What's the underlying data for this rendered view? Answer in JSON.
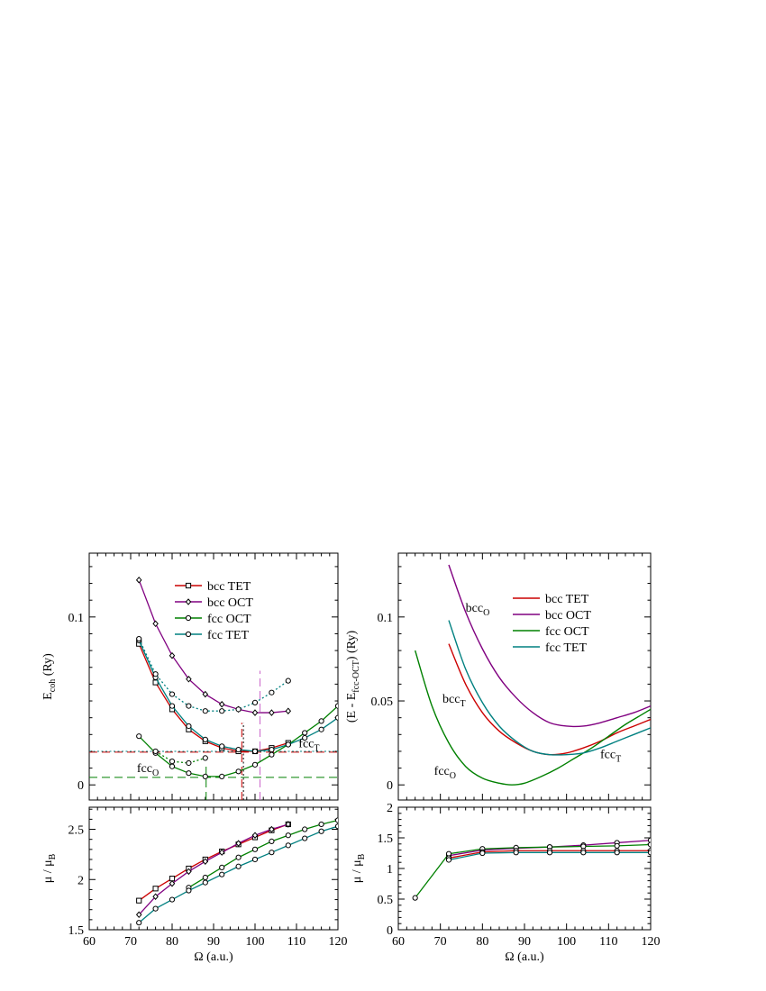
{
  "figure_xlabel_sym": "Ω",
  "figure_xlabel_unit": " (a.u.)",
  "chart_data": [
    {
      "type": "line",
      "panel": "top-left",
      "ylabel_main": "E",
      "ylabel_sub": "coh",
      "ylabel_unit": " (Ry)",
      "xlim": [
        60,
        120
      ],
      "ylim": [
        -0.009,
        0.138
      ],
      "yticks": [
        {
          "v": 0,
          "label": "0"
        },
        {
          "v": 0.1,
          "label": "0.1"
        }
      ],
      "xticks": [
        60,
        70,
        80,
        90,
        100,
        110,
        120
      ],
      "legend_placement": "top-right",
      "series": [
        {
          "name": "bcc TET",
          "color": "#cc0000",
          "marker": "square",
          "style": "solid",
          "points": [
            [
              72,
              0.084
            ],
            [
              76,
              0.061
            ],
            [
              80,
              0.045
            ],
            [
              84,
              0.033
            ],
            [
              88,
              0.026
            ],
            [
              92,
              0.022
            ],
            [
              96,
              0.02
            ],
            [
              100,
              0.02
            ],
            [
              104,
              0.022
            ],
            [
              108,
              0.025
            ]
          ]
        },
        {
          "name": "bcc OCT",
          "color": "#800080",
          "marker": "diamond",
          "style": "solid",
          "points": [
            [
              72,
              0.122
            ],
            [
              76,
              0.096
            ],
            [
              80,
              0.077
            ],
            [
              84,
              0.063
            ],
            [
              88,
              0.054
            ],
            [
              92,
              0.048
            ],
            [
              96,
              0.045
            ],
            [
              100,
              0.043
            ],
            [
              104,
              0.043
            ],
            [
              108,
              0.044
            ]
          ]
        },
        {
          "name": "fcc OCT",
          "color": "#008000",
          "marker": "circle",
          "style": "solid",
          "points": [
            [
              72,
              0.029
            ],
            [
              76,
              0.019
            ],
            [
              80,
              0.011
            ],
            [
              84,
              0.007
            ],
            [
              88,
              0.005
            ],
            [
              92,
              0.005
            ],
            [
              96,
              0.008
            ],
            [
              100,
              0.012
            ],
            [
              104,
              0.018
            ],
            [
              108,
              0.024
            ],
            [
              112,
              0.031
            ],
            [
              116,
              0.038
            ],
            [
              120,
              0.047
            ]
          ]
        },
        {
          "name": "fcc TET",
          "color": "#008080",
          "marker": "circle",
          "style": "solid",
          "points": [
            [
              72,
              0.086
            ],
            [
              76,
              0.064
            ],
            [
              80,
              0.047
            ],
            [
              84,
              0.035
            ],
            [
              88,
              0.027
            ],
            [
              92,
              0.023
            ],
            [
              96,
              0.021
            ],
            [
              100,
              0.02
            ],
            [
              104,
              0.021
            ],
            [
              108,
              0.024
            ],
            [
              112,
              0.028
            ],
            [
              116,
              0.033
            ],
            [
              120,
              0.04
            ]
          ]
        },
        {
          "name": "",
          "color": "#008080",
          "marker": "circle",
          "style": "dotted",
          "points": [
            [
              72,
              0.087
            ],
            [
              76,
              0.066
            ],
            [
              80,
              0.054
            ],
            [
              84,
              0.047
            ],
            [
              88,
              0.044
            ],
            [
              92,
              0.044
            ],
            [
              96,
              0.045
            ],
            [
              100,
              0.049
            ],
            [
              104,
              0.055
            ],
            [
              108,
              0.062
            ]
          ]
        },
        {
          "name": "",
          "color": "#008000",
          "marker": "circle",
          "style": "dotted",
          "points": [
            [
              76,
              0.02
            ],
            [
              80,
              0.014
            ],
            [
              84,
              0.013
            ],
            [
              88,
              0.016
            ]
          ]
        }
      ],
      "hlines": [
        {
          "y": 0.0195,
          "color": "#cc0000",
          "style": "dashed"
        },
        {
          "y": 0.02,
          "color": "#008080",
          "style": "dotted"
        },
        {
          "y": 0.0045,
          "color": "#008000",
          "style": "dashed"
        }
      ],
      "vlines": [
        {
          "x": 96.8,
          "y": 0.037,
          "color": "#cc0000",
          "style": "dashed"
        },
        {
          "x": 97.2,
          "y": 0.037,
          "color": "#000000",
          "style": "dotted"
        },
        {
          "x": 88.2,
          "y": 0.013,
          "color": "#008000",
          "style": "dashed"
        },
        {
          "x": 101.2,
          "y": 0.068,
          "color": "#cc66cc",
          "style": "dashed"
        }
      ],
      "annotations": [
        {
          "main": "fcc",
          "sub": "T",
          "x": 110.5,
          "y": 0.0225
        },
        {
          "main": "fcc",
          "sub": "O",
          "x": 71.5,
          "y": 0.0075
        }
      ]
    },
    {
      "type": "line",
      "panel": "top-right",
      "ylabel_main": "(E - E",
      "ylabel_sub": "fcc-OCT",
      "ylabel_unit": ") (Ry)",
      "xlim": [
        60,
        120
      ],
      "ylim": [
        -0.009,
        0.138
      ],
      "yticks": [
        {
          "v": 0,
          "label": "0"
        },
        {
          "v": 0.05,
          "label": "0.05"
        },
        {
          "v": 0.1,
          "label": "0.1"
        }
      ],
      "xticks": [
        60,
        70,
        80,
        90,
        100,
        110,
        120
      ],
      "legend_placement": "top-right",
      "series": [
        {
          "name": "bcc TET",
          "color": "#cc0000",
          "marker": "none",
          "style": "solid",
          "points": [
            [
              72,
              0.084
            ],
            [
              76,
              0.06
            ],
            [
              80,
              0.043
            ],
            [
              84,
              0.032
            ],
            [
              88,
              0.025
            ],
            [
              92,
              0.02
            ],
            [
              96,
              0.018
            ],
            [
              100,
              0.019
            ],
            [
              104,
              0.022
            ],
            [
              108,
              0.026
            ],
            [
              112,
              0.031
            ],
            [
              116,
              0.035
            ],
            [
              120,
              0.039
            ]
          ]
        },
        {
          "name": "bcc OCT",
          "color": "#800080",
          "marker": "none",
          "style": "solid",
          "points": [
            [
              72,
              0.131
            ],
            [
              76,
              0.103
            ],
            [
              80,
              0.081
            ],
            [
              84,
              0.064
            ],
            [
              88,
              0.052
            ],
            [
              92,
              0.043
            ],
            [
              96,
              0.037
            ],
            [
              100,
              0.035
            ],
            [
              104,
              0.035
            ],
            [
              108,
              0.037
            ],
            [
              112,
              0.04
            ],
            [
              116,
              0.043
            ],
            [
              120,
              0.047
            ]
          ]
        },
        {
          "name": "fcc OCT",
          "color": "#008000",
          "marker": "none",
          "style": "solid",
          "points": [
            [
              64,
              0.08
            ],
            [
              68,
              0.047
            ],
            [
              72,
              0.025
            ],
            [
              76,
              0.011
            ],
            [
              80,
              0.004
            ],
            [
              84,
              0.001
            ],
            [
              87,
              0.0
            ],
            [
              90,
              0.001
            ],
            [
              94,
              0.005
            ],
            [
              98,
              0.01
            ],
            [
              102,
              0.016
            ],
            [
              106,
              0.022
            ],
            [
              110,
              0.029
            ],
            [
              114,
              0.036
            ],
            [
              118,
              0.042
            ],
            [
              120,
              0.045
            ]
          ]
        },
        {
          "name": "fcc TET",
          "color": "#008080",
          "marker": "none",
          "style": "solid",
          "points": [
            [
              72,
              0.098
            ],
            [
              76,
              0.069
            ],
            [
              80,
              0.049
            ],
            [
              84,
              0.035
            ],
            [
              88,
              0.026
            ],
            [
              92,
              0.02
            ],
            [
              96,
              0.018
            ],
            [
              100,
              0.018
            ],
            [
              104,
              0.019
            ],
            [
              108,
              0.022
            ],
            [
              112,
              0.026
            ],
            [
              116,
              0.03
            ],
            [
              120,
              0.034
            ]
          ]
        }
      ],
      "annotations": [
        {
          "main": "bcc",
          "sub": "O",
          "x": 76,
          "y": 0.103
        },
        {
          "main": "bcc",
          "sub": "T",
          "x": 70.5,
          "y": 0.049
        },
        {
          "main": "fcc",
          "sub": "T",
          "x": 108,
          "y": 0.016
        },
        {
          "main": "fcc",
          "sub": "O",
          "x": 68.5,
          "y": 0.006
        }
      ]
    },
    {
      "type": "line",
      "panel": "bottom-left",
      "ylabel_main": "μ / μ",
      "ylabel_sub": "B",
      "ylabel_unit": "",
      "xlim": [
        60,
        120
      ],
      "ylim": [
        1.5,
        2.72
      ],
      "yticks": [
        {
          "v": 1.5,
          "label": "1.5"
        },
        {
          "v": 2,
          "label": "2"
        },
        {
          "v": 2.5,
          "label": "2.5"
        }
      ],
      "xticks": [
        60,
        70,
        80,
        90,
        100,
        110,
        120
      ],
      "series": [
        {
          "name": "bcc TET",
          "color": "#cc0000",
          "marker": "square",
          "style": "solid",
          "points": [
            [
              72,
              1.79
            ],
            [
              76,
              1.91
            ],
            [
              80,
              2.01
            ],
            [
              84,
              2.11
            ],
            [
              88,
              2.2
            ],
            [
              92,
              2.28
            ],
            [
              96,
              2.35
            ],
            [
              100,
              2.42
            ],
            [
              104,
              2.49
            ],
            [
              108,
              2.55
            ]
          ]
        },
        {
          "name": "bcc OCT",
          "color": "#800080",
          "marker": "diamond",
          "style": "solid",
          "points": [
            [
              72,
              1.65
            ],
            [
              76,
              1.83
            ],
            [
              80,
              1.96
            ],
            [
              84,
              2.08
            ],
            [
              88,
              2.18
            ],
            [
              92,
              2.27
            ],
            [
              96,
              2.36
            ],
            [
              100,
              2.44
            ],
            [
              104,
              2.5
            ],
            [
              108,
              2.55
            ]
          ]
        },
        {
          "name": "fcc OCT",
          "color": "#008000",
          "marker": "circle",
          "style": "solid",
          "points": [
            [
              84,
              1.92
            ],
            [
              88,
              2.02
            ],
            [
              92,
              2.12
            ],
            [
              96,
              2.22
            ],
            [
              100,
              2.3
            ],
            [
              104,
              2.38
            ],
            [
              108,
              2.44
            ],
            [
              112,
              2.5
            ],
            [
              116,
              2.55
            ],
            [
              120,
              2.59
            ]
          ]
        },
        {
          "name": "fcc TET",
          "color": "#008080",
          "marker": "circle",
          "style": "solid",
          "points": [
            [
              72,
              1.57
            ],
            [
              76,
              1.71
            ],
            [
              80,
              1.8
            ],
            [
              84,
              1.89
            ],
            [
              88,
              1.97
            ],
            [
              92,
              2.05
            ],
            [
              96,
              2.13
            ],
            [
              100,
              2.2
            ],
            [
              104,
              2.27
            ],
            [
              108,
              2.34
            ],
            [
              112,
              2.41
            ],
            [
              116,
              2.48
            ],
            [
              120,
              2.53
            ]
          ]
        }
      ]
    },
    {
      "type": "line",
      "panel": "bottom-right",
      "ylabel_main": "μ / μ",
      "ylabel_sub": "B",
      "ylabel_unit": "",
      "xlim": [
        60,
        120
      ],
      "ylim": [
        0,
        2
      ],
      "yticks": [
        {
          "v": 0,
          "label": "0"
        },
        {
          "v": 0.5,
          "label": "0.5"
        },
        {
          "v": 1,
          "label": "1"
        },
        {
          "v": 1.5,
          "label": "1.5"
        },
        {
          "v": 2,
          "label": "2"
        }
      ],
      "xticks": [
        60,
        70,
        80,
        90,
        100,
        110,
        120
      ],
      "series": [
        {
          "name": "bcc OCT",
          "color": "#800080",
          "marker": "circle",
          "style": "solid",
          "points": [
            [
              72,
              1.21
            ],
            [
              80,
              1.3
            ],
            [
              88,
              1.33
            ],
            [
              96,
              1.35
            ],
            [
              104,
              1.38
            ],
            [
              112,
              1.42
            ],
            [
              120,
              1.46
            ]
          ]
        },
        {
          "name": "fcc OCT",
          "color": "#008000",
          "marker": "circle",
          "style": "solid",
          "points": [
            [
              64,
              0.52
            ],
            [
              72,
              1.24
            ],
            [
              80,
              1.32
            ],
            [
              88,
              1.34
            ],
            [
              96,
              1.35
            ],
            [
              104,
              1.36
            ],
            [
              112,
              1.37
            ],
            [
              120,
              1.39
            ]
          ]
        },
        {
          "name": "bcc TET",
          "color": "#cc0000",
          "marker": "circle",
          "style": "solid",
          "points": [
            [
              72,
              1.17
            ],
            [
              80,
              1.27
            ],
            [
              88,
              1.29
            ],
            [
              96,
              1.29
            ],
            [
              104,
              1.29
            ],
            [
              112,
              1.29
            ],
            [
              120,
              1.29
            ]
          ]
        },
        {
          "name": "fcc TET",
          "color": "#008080",
          "marker": "circle",
          "style": "solid",
          "points": [
            [
              72,
              1.14
            ],
            [
              80,
              1.25
            ],
            [
              88,
              1.26
            ],
            [
              96,
              1.26
            ],
            [
              104,
              1.26
            ],
            [
              112,
              1.26
            ],
            [
              120,
              1.26
            ]
          ]
        }
      ]
    }
  ]
}
